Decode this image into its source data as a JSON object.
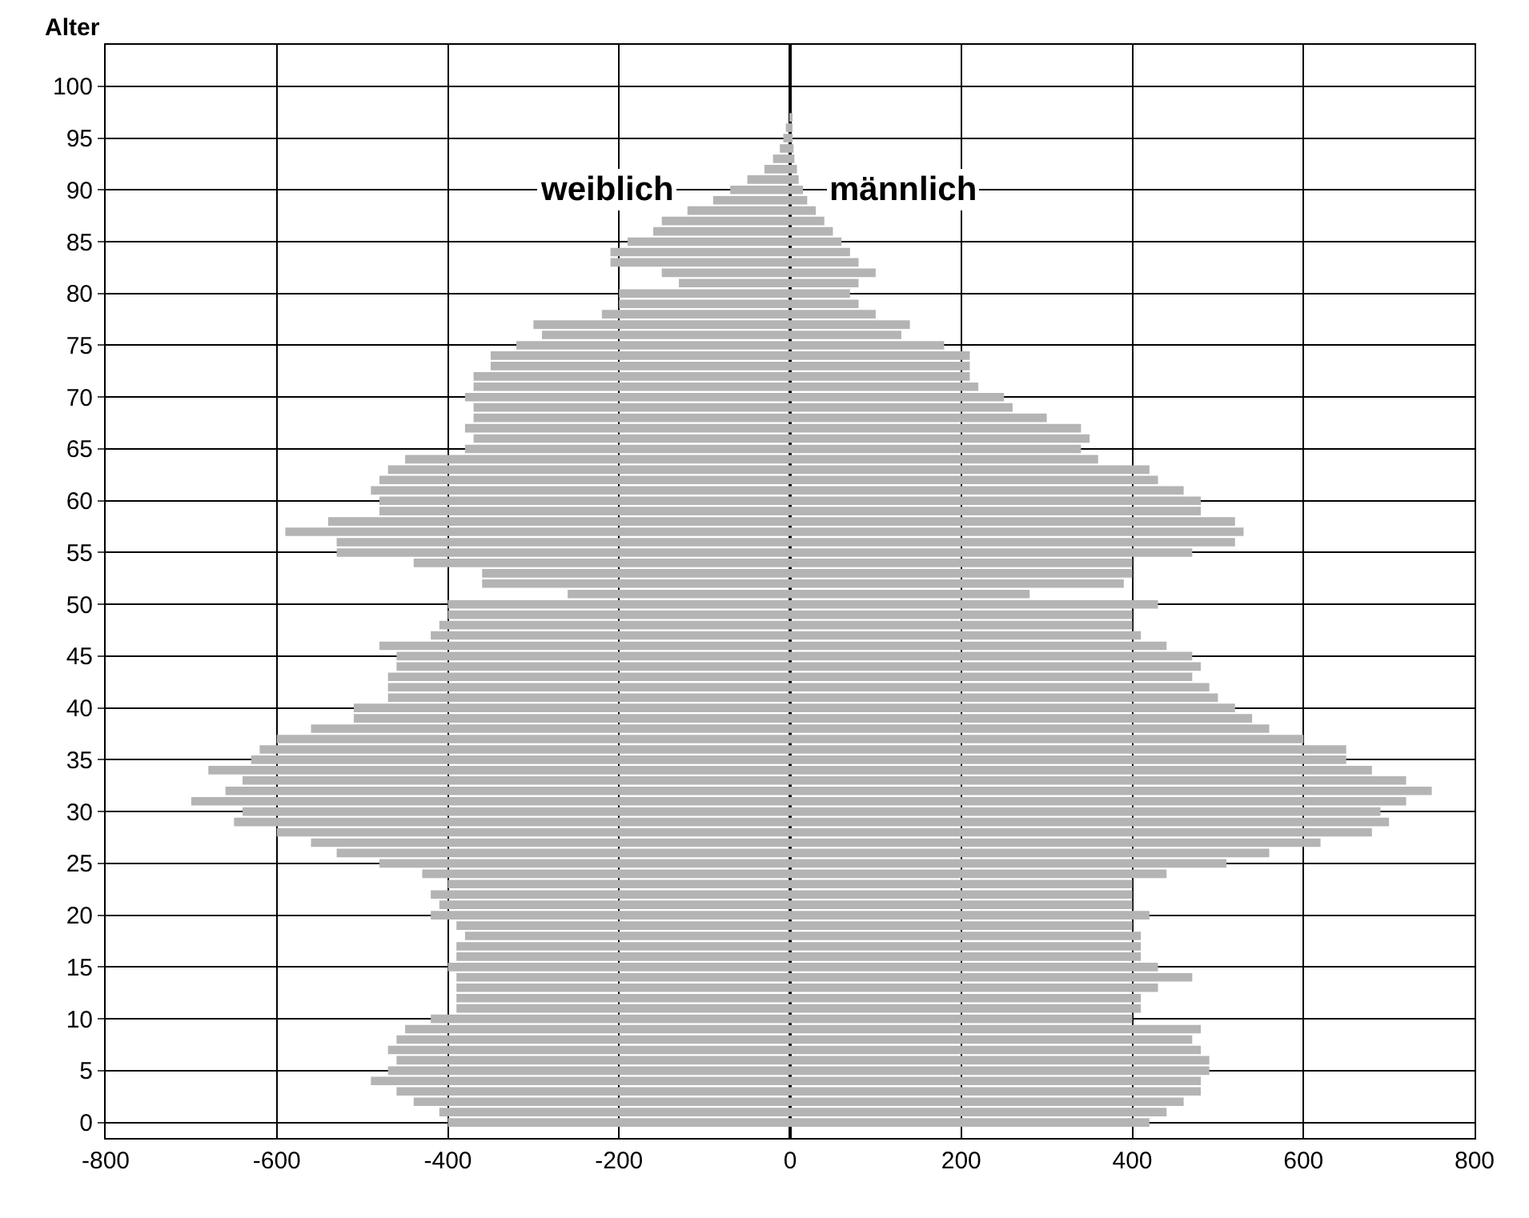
{
  "chart_data": {
    "type": "bar",
    "orientation": "horizontal",
    "ylabel": "Alter",
    "x": [
      0,
      1,
      2,
      3,
      4,
      5,
      6,
      7,
      8,
      9,
      10,
      11,
      12,
      13,
      14,
      15,
      16,
      17,
      18,
      19,
      20,
      21,
      22,
      23,
      24,
      25,
      26,
      27,
      28,
      29,
      30,
      31,
      32,
      33,
      34,
      35,
      36,
      37,
      38,
      39,
      40,
      41,
      42,
      43,
      44,
      45,
      46,
      47,
      48,
      49,
      50,
      51,
      52,
      53,
      54,
      55,
      56,
      57,
      58,
      59,
      60,
      61,
      62,
      63,
      64,
      65,
      66,
      67,
      68,
      69,
      70,
      71,
      72,
      73,
      74,
      75,
      76,
      77,
      78,
      79,
      80,
      81,
      82,
      83,
      84,
      85,
      86,
      87,
      88,
      89,
      90,
      91,
      92,
      93,
      94,
      95,
      96,
      97
    ],
    "series": [
      {
        "name": "weiblich",
        "color": "#b4b4b4",
        "values": [
          -400,
          -410,
          -440,
          -460,
          -490,
          -470,
          -460,
          -470,
          -460,
          -450,
          -420,
          -390,
          -390,
          -390,
          -390,
          -400,
          -390,
          -390,
          -380,
          -390,
          -420,
          -410,
          -420,
          -400,
          -430,
          -480,
          -530,
          -560,
          -600,
          -650,
          -640,
          -700,
          -660,
          -640,
          -680,
          -630,
          -620,
          -600,
          -560,
          -510,
          -510,
          -470,
          -470,
          -470,
          -460,
          -460,
          -480,
          -420,
          -410,
          -400,
          -400,
          -260,
          -360,
          -360,
          -440,
          -530,
          -530,
          -590,
          -540,
          -480,
          -480,
          -490,
          -480,
          -470,
          -450,
          -380,
          -370,
          -380,
          -370,
          -370,
          -380,
          -370,
          -370,
          -350,
          -350,
          -320,
          -290,
          -300,
          -220,
          -200,
          -200,
          -130,
          -150,
          -210,
          -210,
          -190,
          -160,
          -150,
          -120,
          -90,
          -70,
          -50,
          -30,
          -20,
          -12,
          -8,
          -5,
          null
        ]
      },
      {
        "name": "männlich",
        "color": "#b4b4b4",
        "values": [
          420,
          440,
          460,
          480,
          480,
          490,
          490,
          480,
          470,
          480,
          400,
          410,
          410,
          430,
          470,
          430,
          410,
          410,
          410,
          400,
          420,
          400,
          400,
          400,
          440,
          510,
          560,
          620,
          680,
          700,
          690,
          720,
          750,
          720,
          680,
          650,
          650,
          600,
          560,
          540,
          520,
          500,
          490,
          470,
          480,
          470,
          440,
          410,
          400,
          400,
          430,
          280,
          390,
          400,
          400,
          470,
          520,
          530,
          520,
          480,
          480,
          460,
          430,
          420,
          360,
          340,
          350,
          340,
          300,
          260,
          250,
          220,
          210,
          210,
          210,
          180,
          130,
          140,
          100,
          80,
          70,
          80,
          100,
          80,
          70,
          60,
          50,
          40,
          30,
          20,
          15,
          10,
          8,
          5,
          4,
          3,
          2,
          1
        ]
      }
    ],
    "xlim": [
      -800,
      800
    ],
    "xticks": [
      -800,
      -600,
      -400,
      -200,
      0,
      200,
      400,
      600,
      800
    ],
    "ylim": [
      -1.5,
      104
    ],
    "yticks": [
      0,
      5,
      10,
      15,
      20,
      25,
      30,
      35,
      40,
      45,
      50,
      55,
      60,
      65,
      70,
      75,
      80,
      85,
      90,
      95,
      100
    ],
    "grid": true,
    "legend": false,
    "stacked": true
  }
}
